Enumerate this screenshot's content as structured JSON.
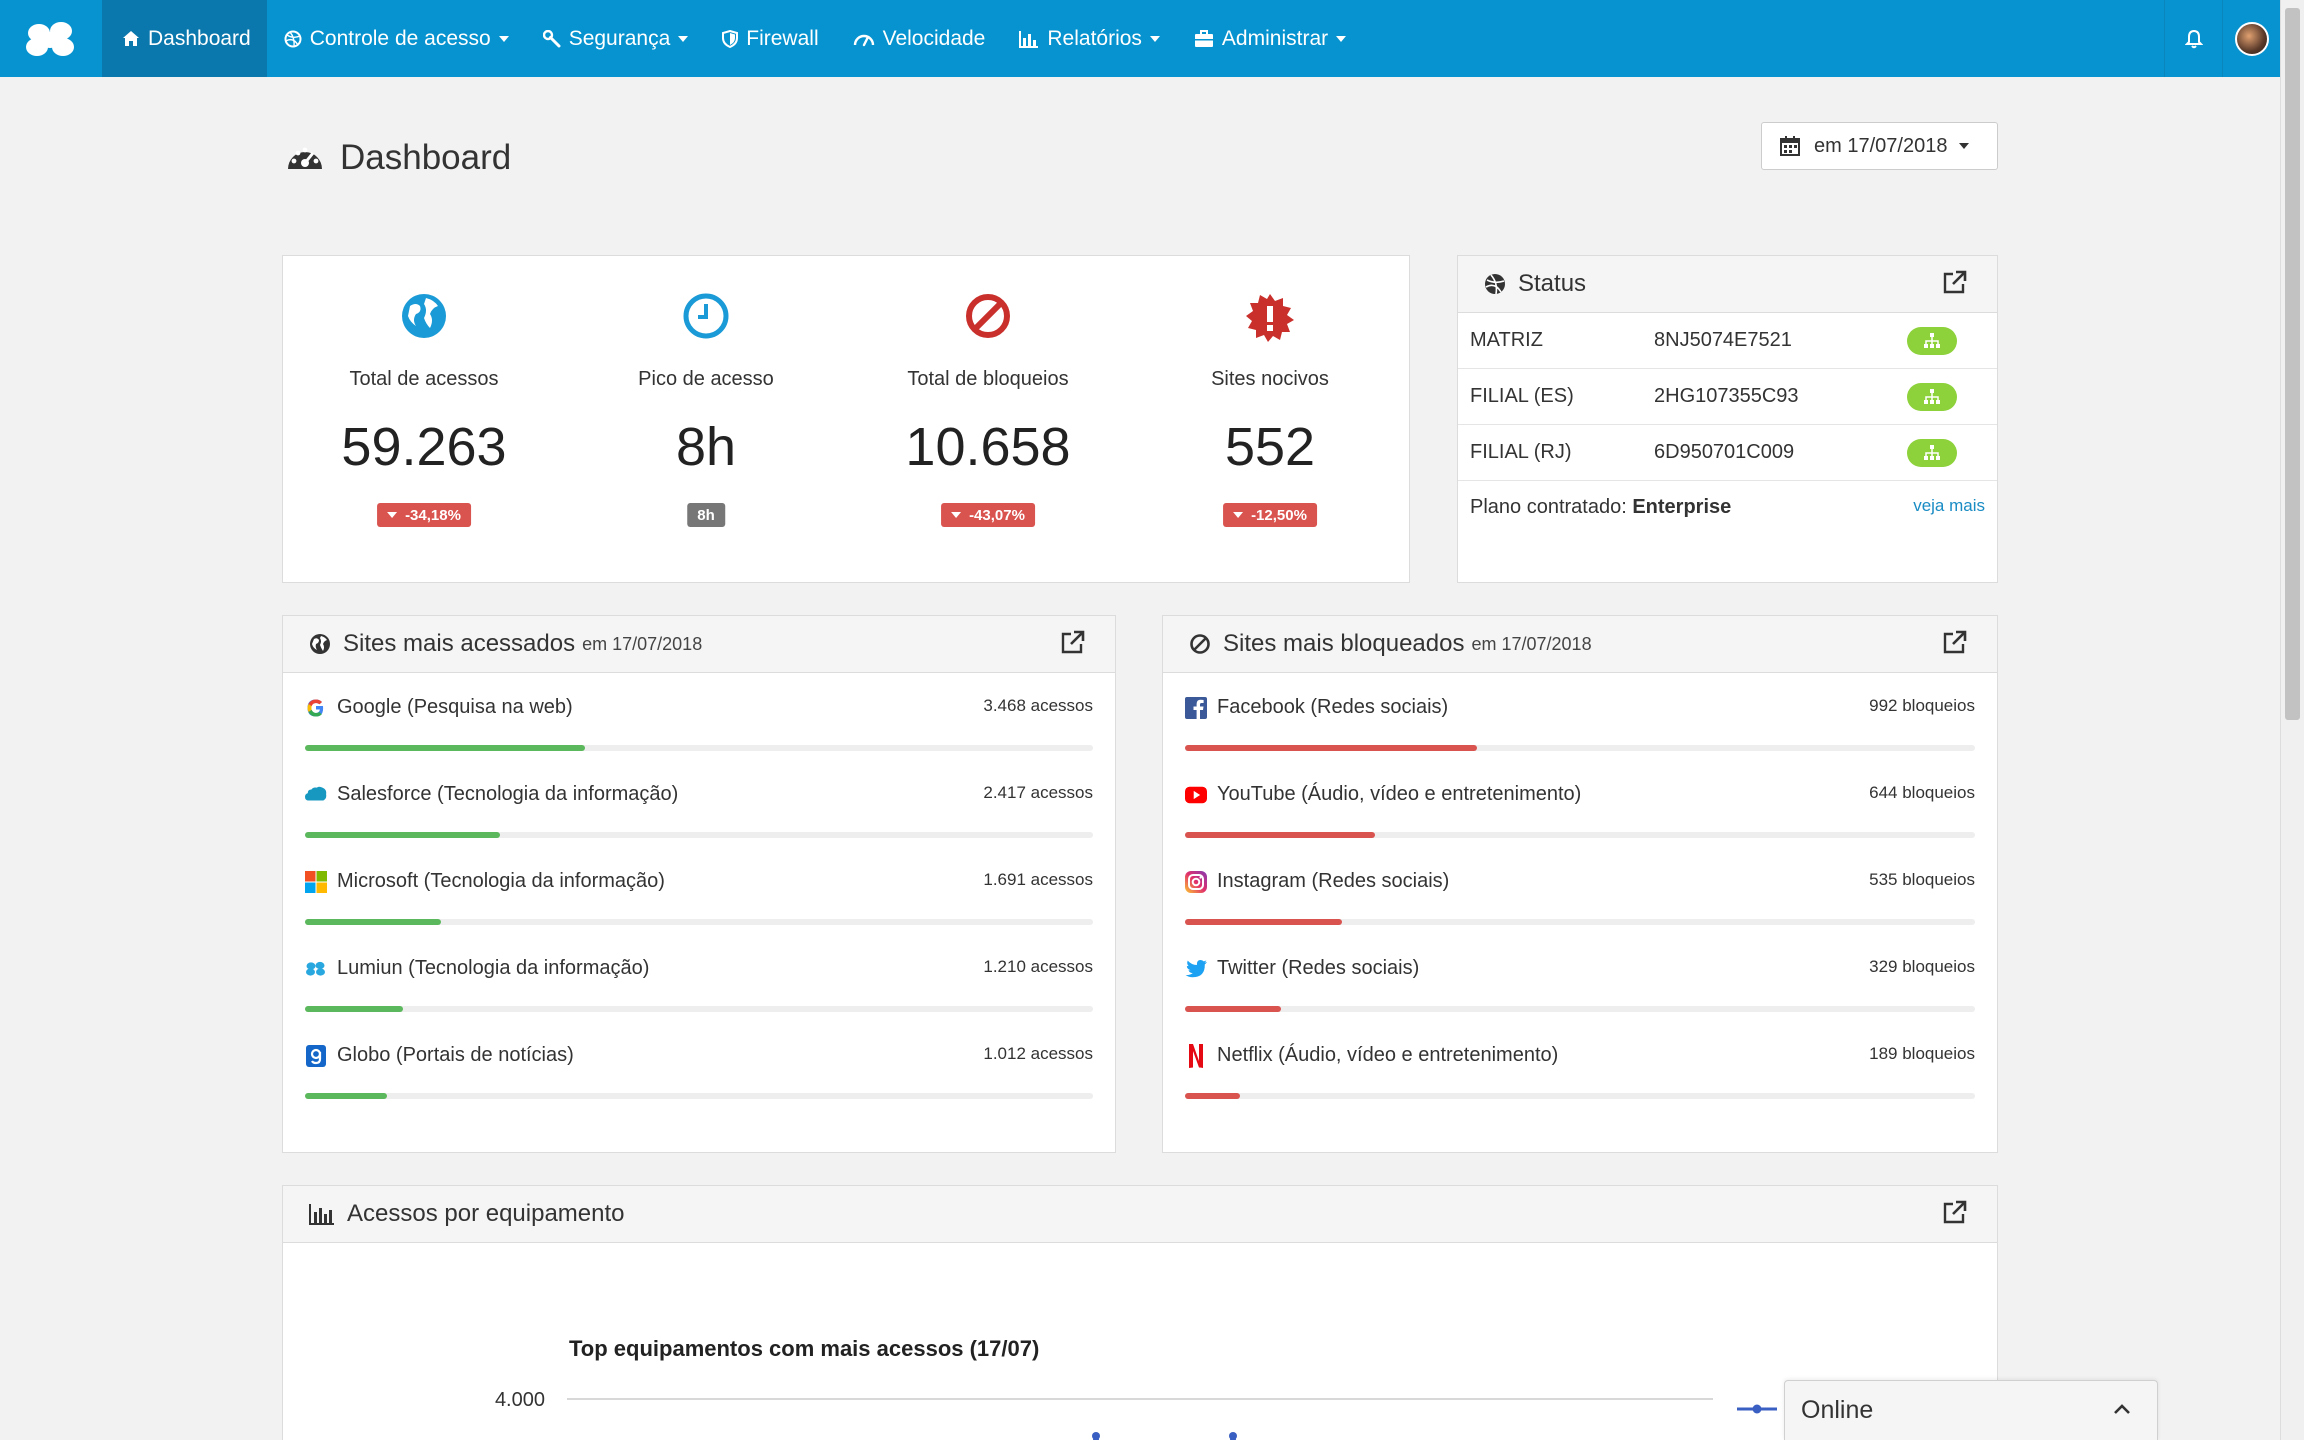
{
  "nav": {
    "items": [
      {
        "label": "Dashboard",
        "icon": "home-icon"
      },
      {
        "label": "Controle de acesso",
        "icon": "dribbble-icon"
      },
      {
        "label": "Segurança",
        "icon": "wrench-icon"
      },
      {
        "label": "Firewall",
        "icon": "shield-icon"
      },
      {
        "label": "Velocidade",
        "icon": "speedometer-icon"
      },
      {
        "label": "Relatórios",
        "icon": "bar-chart-icon"
      },
      {
        "label": "Administrar",
        "icon": "briefcase-icon"
      }
    ]
  },
  "page": {
    "title": "Dashboard",
    "date_label": "em 17/07/2018"
  },
  "stats": [
    {
      "label": "Total de acessos",
      "value": "59.263",
      "badge": "-34,18%",
      "icon": "globe-icon",
      "color": "#1a9ad6"
    },
    {
      "label": "Pico de acesso",
      "value": "8h",
      "badge": "8h",
      "icon": "clock-icon",
      "color": "#1a9ad6"
    },
    {
      "label": "Total de bloqueios",
      "value": "10.658",
      "badge": "-43,07%",
      "icon": "ban-icon",
      "color": "#c9302c"
    },
    {
      "label": "Sites nocivos",
      "value": "552",
      "badge": "-12,50%",
      "icon": "alert-burst-icon",
      "color": "#c9302c"
    }
  ],
  "status": {
    "title": "Status",
    "rows": [
      {
        "name": "MATRIZ",
        "id": "8NJ5074E7521"
      },
      {
        "name": "FILIAL (ES)",
        "id": "2HG107355C93"
      },
      {
        "name": "FILIAL (RJ)",
        "id": "6D950701C009"
      }
    ],
    "plan_label": "Plano contratado:",
    "plan_value": "Enterprise",
    "more": "veja mais"
  },
  "sites_accessed": {
    "title": "Sites mais acessados",
    "sub": "em 17/07/2018",
    "items": [
      {
        "name": "Google (Pesquisa na web)",
        "count": "3.468 acessos",
        "fraction": 0.355,
        "icon": "google-icon"
      },
      {
        "name": "Salesforce (Tecnologia da informação)",
        "count": "2.417 acessos",
        "fraction": 0.247,
        "icon": "salesforce-icon"
      },
      {
        "name": "Microsoft (Tecnologia da informação)",
        "count": "1.691 acessos",
        "fraction": 0.173,
        "icon": "microsoft-icon"
      },
      {
        "name": "Lumiun (Tecnologia da informação)",
        "count": "1.210 acessos",
        "fraction": 0.124,
        "icon": "lumiun-icon"
      },
      {
        "name": "Globo (Portais de notícias)",
        "count": "1.012 acessos",
        "fraction": 0.104,
        "icon": "globo-icon"
      }
    ]
  },
  "sites_blocked": {
    "title": "Sites mais bloqueados",
    "sub": "em 17/07/2018",
    "items": [
      {
        "name": "Facebook (Redes sociais)",
        "count": "992 bloqueios",
        "fraction": 0.369,
        "icon": "facebook-icon"
      },
      {
        "name": "YouTube (Áudio, vídeo e entretenimento)",
        "count": "644 bloqueios",
        "fraction": 0.24,
        "icon": "youtube-icon"
      },
      {
        "name": "Instagram (Redes sociais)",
        "count": "535 bloqueios",
        "fraction": 0.199,
        "icon": "instagram-icon"
      },
      {
        "name": "Twitter (Redes sociais)",
        "count": "329 bloqueios",
        "fraction": 0.122,
        "icon": "twitter-icon"
      },
      {
        "name": "Netflix (Áudio, vídeo e entretenimento)",
        "count": "189 bloqueios",
        "fraction": 0.07,
        "icon": "netflix-icon"
      }
    ]
  },
  "equipment": {
    "title": "Acessos por equipamento",
    "chart_title": "Top equipamentos com mais acessos (17/07)"
  },
  "chart_data": {
    "type": "line",
    "title": "Top equipamentos com mais acessos (17/07)",
    "y_tick_labels": [
      "4.000"
    ]
  },
  "online": {
    "label": "Online"
  }
}
